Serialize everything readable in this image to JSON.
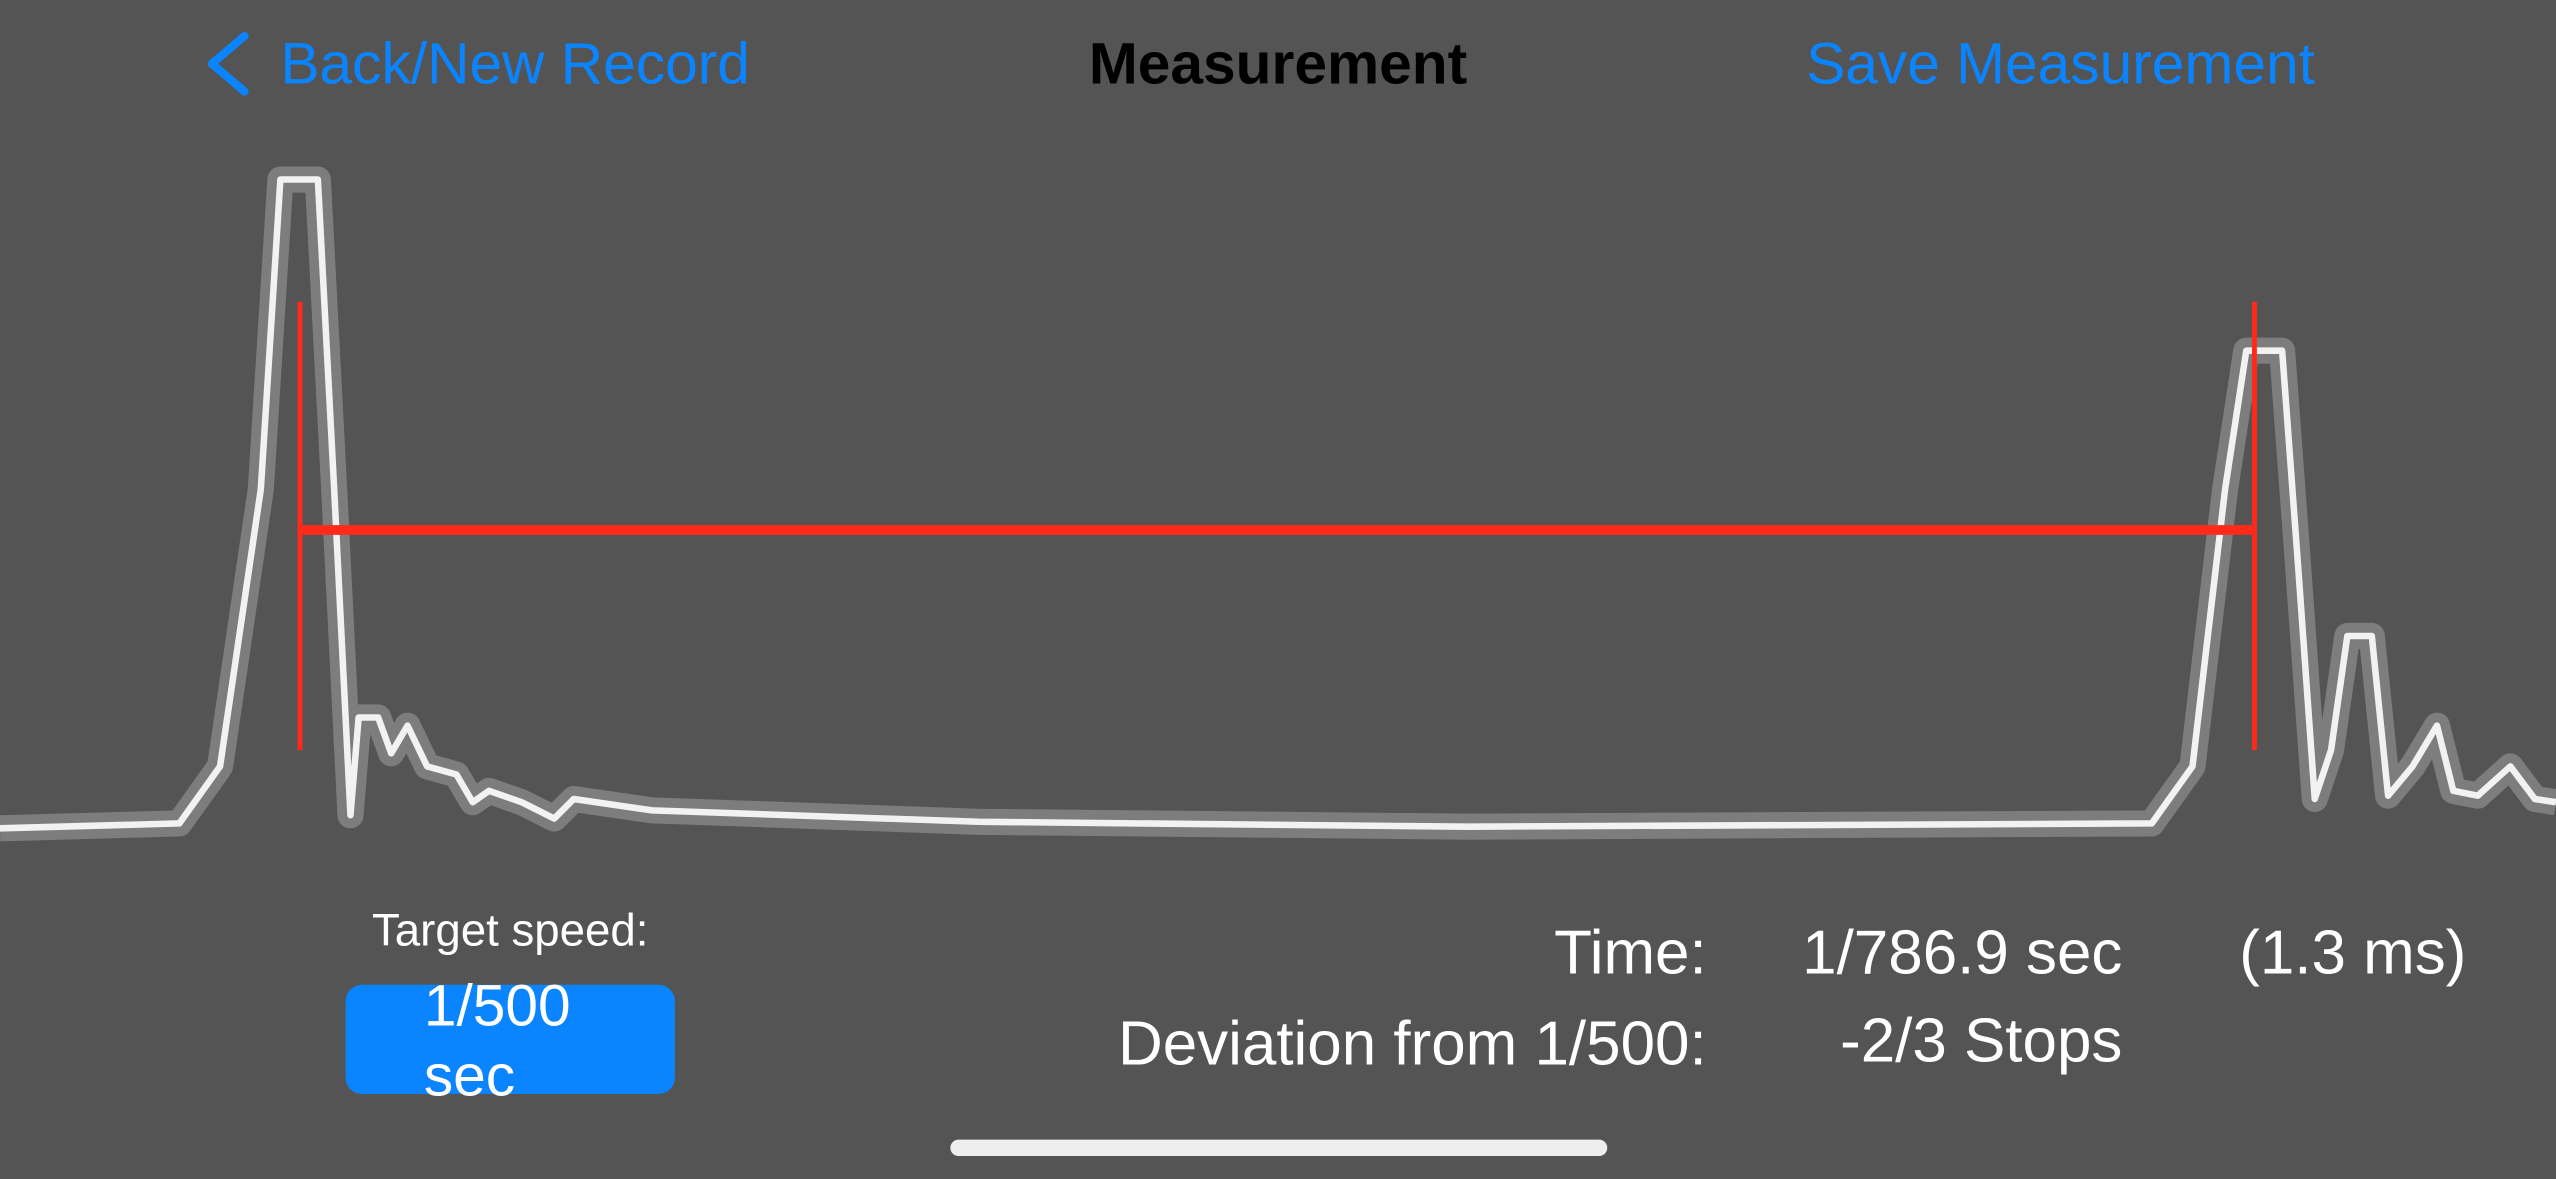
{
  "nav": {
    "back": "Back/New Record",
    "title": "Measurement",
    "action": "Save Measurement"
  },
  "target": {
    "label": "Target speed:",
    "button": "1/500 sec"
  },
  "results": {
    "time_label": "Time:",
    "time_value": "1/786.9 sec",
    "time_ms": "(1.3 ms)",
    "deviation_label": "Deviation from 1/500:",
    "deviation_value": "-2/3 Stops"
  }
}
